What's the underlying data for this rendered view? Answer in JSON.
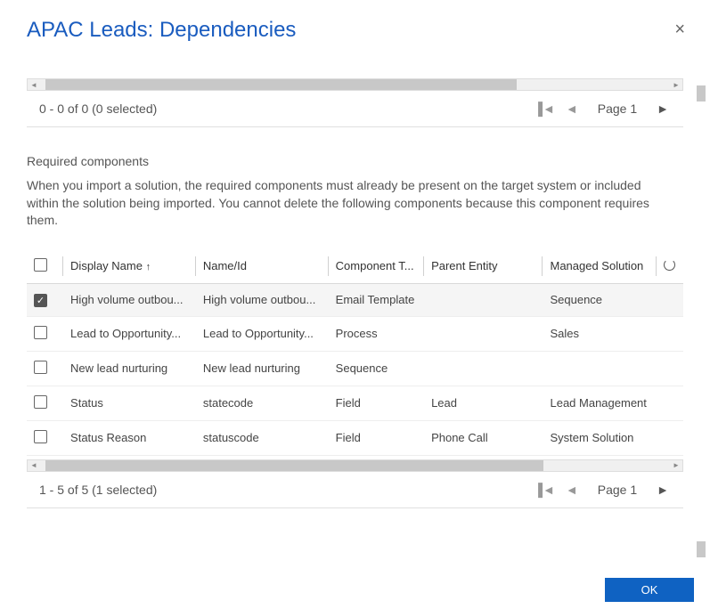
{
  "dialog": {
    "title": "APAC Leads: Dependencies",
    "close_label": "×"
  },
  "pager_top": {
    "status": "0 - 0 of 0 (0 selected)",
    "page_label": "Page 1"
  },
  "required": {
    "heading": "Required components",
    "description": "When you import a solution, the required components must already be present on the target system or included within the solution being imported. You cannot delete the following components because this component requires them."
  },
  "columns": {
    "display_name": "Display Name",
    "name_id": "Name/Id",
    "component_type": "Component T...",
    "parent_entity": "Parent Entity",
    "managed_solution": "Managed Solution"
  },
  "rows": [
    {
      "checked": true,
      "display": "High volume outbou...",
      "name": "High volume outbou...",
      "type": "Email Template",
      "parent": "",
      "mgmt": "Sequence"
    },
    {
      "checked": false,
      "display": "Lead to Opportunity...",
      "name": "Lead to Opportunity...",
      "type": "Process",
      "parent": "",
      "mgmt": "Sales"
    },
    {
      "checked": false,
      "display": "New lead nurturing",
      "name": "New lead nurturing",
      "type": "Sequence",
      "parent": "",
      "mgmt": ""
    },
    {
      "checked": false,
      "display": "Status",
      "name": "statecode",
      "type": "Field",
      "parent": "Lead",
      "mgmt": "Lead Management"
    },
    {
      "checked": false,
      "display": "Status Reason",
      "name": "statuscode",
      "type": "Field",
      "parent": "Phone Call",
      "mgmt": "System Solution"
    }
  ],
  "pager_bottom": {
    "status": "1 - 5 of 5 (1 selected)",
    "page_label": "Page 1"
  },
  "footer": {
    "ok": "OK"
  },
  "colors": {
    "accent": "#1a5cbf",
    "ok_bg": "#0f62c2"
  }
}
